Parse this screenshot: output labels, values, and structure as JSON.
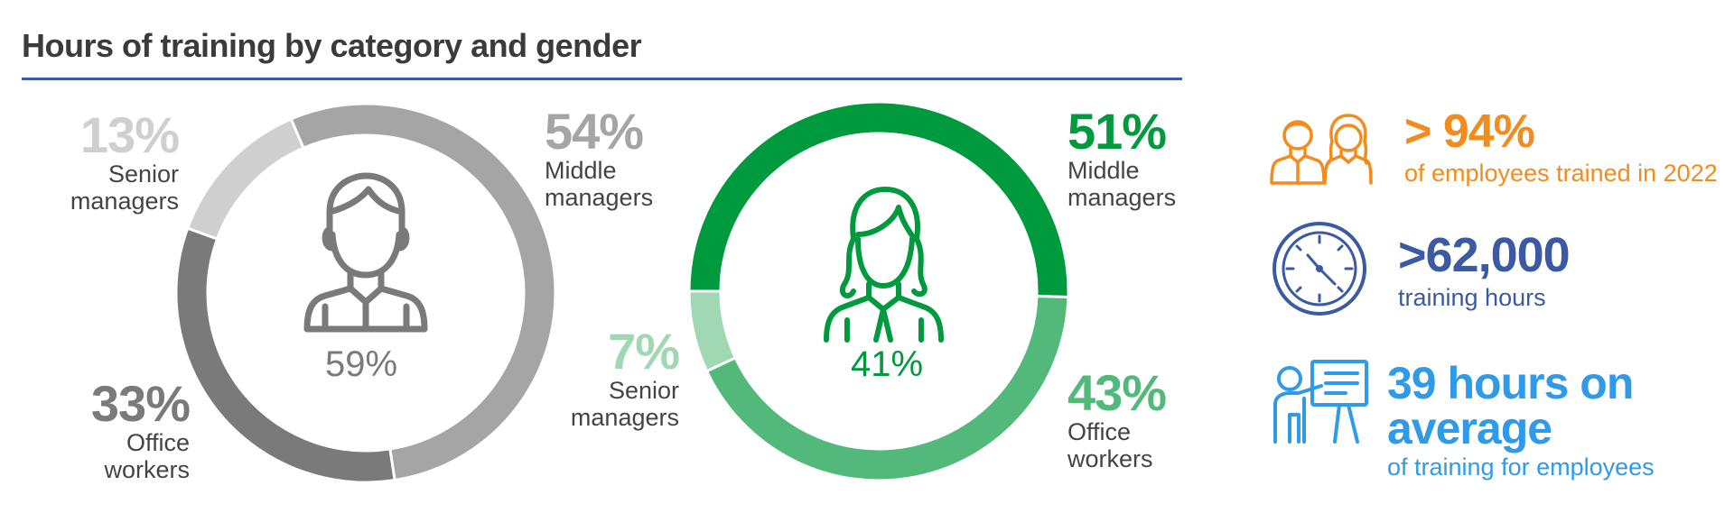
{
  "title": "Hours of training by category and gender",
  "colors": {
    "rule": "#3b5aa3",
    "men_senior": "#cfcfcf",
    "men_middle": "#a5a5a5",
    "men_office": "#7a7a7a",
    "women_senior": "#9fd8b3",
    "women_middle": "#009a3e",
    "women_office": "#52b97b",
    "orange": "#f28c1e",
    "navy": "#3b5aa3",
    "lightblue": "#2f9ae8"
  },
  "chart_data": [
    {
      "type": "pie",
      "variant": "donut",
      "center_label": "59%",
      "icon": "man-icon",
      "slices": [
        {
          "pct_label": "13%",
          "label": "Senior managers",
          "lines": [
            "Senior",
            "managers"
          ],
          "value": 13
        },
        {
          "pct_label": "54%",
          "label": "Middle managers",
          "lines": [
            "Middle",
            "managers"
          ],
          "value": 54
        },
        {
          "pct_label": "33%",
          "label": "Office workers",
          "lines": [
            "Office",
            "workers"
          ],
          "value": 33
        }
      ]
    },
    {
      "type": "pie",
      "variant": "donut",
      "center_label": "41%",
      "icon": "woman-icon",
      "slices": [
        {
          "pct_label": "51%",
          "label": "Middle managers",
          "lines": [
            "Middle",
            "managers"
          ],
          "value": 51
        },
        {
          "pct_label": "43%",
          "label": "Office workers",
          "lines": [
            "Office",
            "workers"
          ],
          "value": 43
        },
        {
          "pct_label": "7%",
          "label": "Senior managers",
          "lines": [
            "Senior",
            "managers"
          ],
          "value": 7
        }
      ]
    }
  ],
  "stats": [
    {
      "value": "> 94%",
      "text": "of employees trained in 2022",
      "icon": "employees-icon"
    },
    {
      "value": ">62,000",
      "text": "training hours",
      "icon": "clock-icon"
    },
    {
      "value_lines": [
        "39 hours on",
        "average"
      ],
      "text": "of training for employees",
      "icon": "presenter-icon"
    }
  ]
}
